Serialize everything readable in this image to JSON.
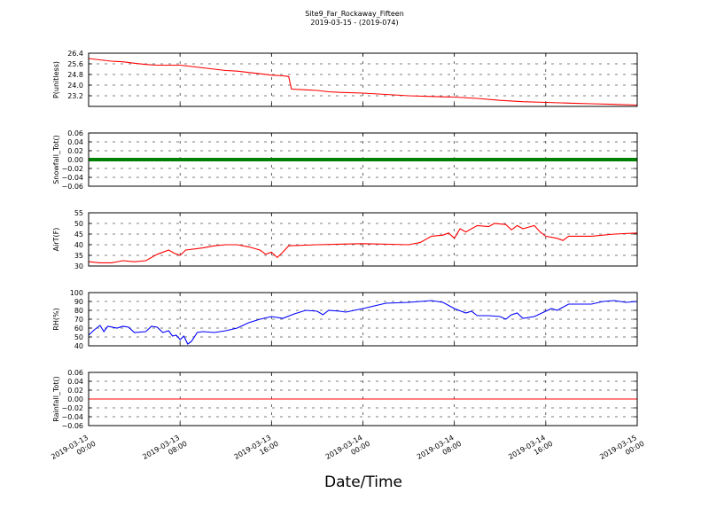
{
  "chart_data": {
    "title": "Site9_Far_Rockaway_Fifteen",
    "subtitle": "2019-03-15 - (2019-074)",
    "xlabel": "Date/Time",
    "type": "line",
    "x_range": [
      "2019-03-13 00:00",
      "2019-03-15 00:00"
    ],
    "x_ticks": [
      "2019-03-13 00:00",
      "2019-03-13 08:00",
      "2019-03-13 16:00",
      "2019-03-14 00:00",
      "2019-03-14 08:00",
      "2019-03-14 16:00",
      "2019-03-15 00:00"
    ],
    "x_tick_labels": [
      [
        "2019-03-13",
        "00:00"
      ],
      [
        "2019-03-13",
        "08:00"
      ],
      [
        "2019-03-13",
        "16:00"
      ],
      [
        "2019-03-14",
        "00:00"
      ],
      [
        "2019-03-14",
        "08:00"
      ],
      [
        "2019-03-14",
        "16:00"
      ],
      [
        "2019-03-15",
        "00:00"
      ]
    ],
    "grid": true,
    "panels": [
      {
        "ylabel": "P(unitless)",
        "ylim": [
          22.4,
          26.4
        ],
        "yticks": [
          23.2,
          24.0,
          24.8,
          25.6,
          26.4
        ],
        "ytick_labels": [
          "23.2",
          "24.0",
          "24.8",
          "25.6",
          "26.4"
        ],
        "color": "#ff0000",
        "series": [
          {
            "x": "2019-03-13 00:00",
            "y": 26.0
          },
          {
            "x": "2019-03-13 01:00",
            "y": 25.9
          },
          {
            "x": "2019-03-13 02:00",
            "y": 25.8
          },
          {
            "x": "2019-03-13 03:00",
            "y": 25.75
          },
          {
            "x": "2019-03-13 04:00",
            "y": 25.65
          },
          {
            "x": "2019-03-13 05:00",
            "y": 25.55
          },
          {
            "x": "2019-03-13 06:00",
            "y": 25.5
          },
          {
            "x": "2019-03-13 07:00",
            "y": 25.5
          },
          {
            "x": "2019-03-13 08:00",
            "y": 25.5
          },
          {
            "x": "2019-03-13 09:00",
            "y": 25.4
          },
          {
            "x": "2019-03-13 10:00",
            "y": 25.3
          },
          {
            "x": "2019-03-13 11:00",
            "y": 25.2
          },
          {
            "x": "2019-03-13 12:00",
            "y": 25.1
          },
          {
            "x": "2019-03-13 13:00",
            "y": 25.05
          },
          {
            "x": "2019-03-13 14:00",
            "y": 24.95
          },
          {
            "x": "2019-03-13 15:00",
            "y": 24.85
          },
          {
            "x": "2019-03-13 16:00",
            "y": 24.75
          },
          {
            "x": "2019-03-13 17:00",
            "y": 24.7
          },
          {
            "x": "2019-03-13 17:30",
            "y": 24.65
          },
          {
            "x": "2019-03-13 17:45",
            "y": 23.7
          },
          {
            "x": "2019-03-13 19:00",
            "y": 23.65
          },
          {
            "x": "2019-03-13 20:00",
            "y": 23.6
          },
          {
            "x": "2019-03-13 21:00",
            "y": 23.5
          },
          {
            "x": "2019-03-13 22:00",
            "y": 23.45
          },
          {
            "x": "2019-03-14 00:00",
            "y": 23.4
          },
          {
            "x": "2019-03-14 02:00",
            "y": 23.3
          },
          {
            "x": "2019-03-14 04:00",
            "y": 23.2
          },
          {
            "x": "2019-03-14 06:00",
            "y": 23.15
          },
          {
            "x": "2019-03-14 08:00",
            "y": 23.1
          },
          {
            "x": "2019-03-14 10:00",
            "y": 23.0
          },
          {
            "x": "2019-03-14 12:00",
            "y": 22.85
          },
          {
            "x": "2019-03-14 14:00",
            "y": 22.75
          },
          {
            "x": "2019-03-14 16:00",
            "y": 22.7
          },
          {
            "x": "2019-03-14 18:00",
            "y": 22.65
          },
          {
            "x": "2019-03-14 20:00",
            "y": 22.6
          },
          {
            "x": "2019-03-14 22:00",
            "y": 22.55
          },
          {
            "x": "2019-03-15 00:00",
            "y": 22.5
          }
        ]
      },
      {
        "ylabel": "Snowfall_Tot()",
        "ylim": [
          -0.06,
          0.06
        ],
        "yticks": [
          -0.06,
          -0.04,
          -0.02,
          0.0,
          0.02,
          0.04,
          0.06
        ],
        "ytick_labels": [
          "−0.06",
          "−0.04",
          "−0.02",
          "0.00",
          "0.02",
          "0.04",
          "0.06"
        ],
        "color": "#008000",
        "series": [
          {
            "x": "2019-03-13 00:00",
            "y": 0.0
          },
          {
            "x": "2019-03-15 00:00",
            "y": 0.0
          }
        ]
      },
      {
        "ylabel": "AirT(F)",
        "ylim": [
          30,
          55
        ],
        "yticks": [
          30,
          35,
          40,
          45,
          50,
          55
        ],
        "ytick_labels": [
          "30",
          "35",
          "40",
          "45",
          "50",
          "55"
        ],
        "color": "#ff0000",
        "series": [
          {
            "x": "2019-03-13 00:00",
            "y": 32.0
          },
          {
            "x": "2019-03-13 01:00",
            "y": 31.5
          },
          {
            "x": "2019-03-13 02:00",
            "y": 31.5
          },
          {
            "x": "2019-03-13 03:00",
            "y": 32.5
          },
          {
            "x": "2019-03-13 04:00",
            "y": 32.0
          },
          {
            "x": "2019-03-13 05:00",
            "y": 32.5
          },
          {
            "x": "2019-03-13 06:00",
            "y": 35.5
          },
          {
            "x": "2019-03-13 07:00",
            "y": 37.5
          },
          {
            "x": "2019-03-13 07:30",
            "y": 36.0
          },
          {
            "x": "2019-03-13 08:00",
            "y": 35.0
          },
          {
            "x": "2019-03-13 08:30",
            "y": 37.5
          },
          {
            "x": "2019-03-13 10:00",
            "y": 38.5
          },
          {
            "x": "2019-03-13 11:00",
            "y": 39.5
          },
          {
            "x": "2019-03-13 12:00",
            "y": 40.0
          },
          {
            "x": "2019-03-13 13:00",
            "y": 40.0
          },
          {
            "x": "2019-03-13 14:00",
            "y": 39.0
          },
          {
            "x": "2019-03-13 15:00",
            "y": 37.5
          },
          {
            "x": "2019-03-13 15:30",
            "y": 35.5
          },
          {
            "x": "2019-03-13 16:00",
            "y": 36.5
          },
          {
            "x": "2019-03-13 16:30",
            "y": 34.0
          },
          {
            "x": "2019-03-13 17:00",
            "y": 36.5
          },
          {
            "x": "2019-03-13 17:30",
            "y": 39.5
          },
          {
            "x": "2019-03-13 20:00",
            "y": 40.0
          },
          {
            "x": "2019-03-14 00:00",
            "y": 40.5
          },
          {
            "x": "2019-03-14 04:00",
            "y": 40.0
          },
          {
            "x": "2019-03-14 05:00",
            "y": 41.0
          },
          {
            "x": "2019-03-14 06:00",
            "y": 44.0
          },
          {
            "x": "2019-03-14 07:00",
            "y": 44.5
          },
          {
            "x": "2019-03-14 07:30",
            "y": 45.5
          },
          {
            "x": "2019-03-14 08:00",
            "y": 43.0
          },
          {
            "x": "2019-03-14 08:30",
            "y": 47.5
          },
          {
            "x": "2019-03-14 09:00",
            "y": 46.0
          },
          {
            "x": "2019-03-14 10:00",
            "y": 49.0
          },
          {
            "x": "2019-03-14 11:00",
            "y": 48.5
          },
          {
            "x": "2019-03-14 11:30",
            "y": 50.0
          },
          {
            "x": "2019-03-14 12:30",
            "y": 49.5
          },
          {
            "x": "2019-03-14 13:00",
            "y": 47.0
          },
          {
            "x": "2019-03-14 13:30",
            "y": 49.0
          },
          {
            "x": "2019-03-14 14:00",
            "y": 47.5
          },
          {
            "x": "2019-03-14 15:00",
            "y": 49.0
          },
          {
            "x": "2019-03-14 15:30",
            "y": 46.0
          },
          {
            "x": "2019-03-14 16:00",
            "y": 44.0
          },
          {
            "x": "2019-03-14 17:00",
            "y": 43.0
          },
          {
            "x": "2019-03-14 17:30",
            "y": 42.0
          },
          {
            "x": "2019-03-14 18:00",
            "y": 44.0
          },
          {
            "x": "2019-03-14 20:00",
            "y": 44.0
          },
          {
            "x": "2019-03-14 22:00",
            "y": 45.0
          },
          {
            "x": "2019-03-15 00:00",
            "y": 45.5
          }
        ]
      },
      {
        "ylabel": "RH(%)",
        "ylim": [
          40,
          100
        ],
        "yticks": [
          40,
          50,
          60,
          70,
          80,
          90,
          100
        ],
        "ytick_labels": [
          "40",
          "50",
          "60",
          "70",
          "80",
          "90",
          "100"
        ],
        "color": "#0000ff",
        "series": [
          {
            "x": "2019-03-13 00:00",
            "y": 52
          },
          {
            "x": "2019-03-13 00:30",
            "y": 58
          },
          {
            "x": "2019-03-13 01:00",
            "y": 63
          },
          {
            "x": "2019-03-13 01:20",
            "y": 56
          },
          {
            "x": "2019-03-13 01:40",
            "y": 62
          },
          {
            "x": "2019-03-13 02:30",
            "y": 60
          },
          {
            "x": "2019-03-13 03:00",
            "y": 62
          },
          {
            "x": "2019-03-13 03:30",
            "y": 61
          },
          {
            "x": "2019-03-13 04:00",
            "y": 55
          },
          {
            "x": "2019-03-13 05:00",
            "y": 56
          },
          {
            "x": "2019-03-13 05:30",
            "y": 62
          },
          {
            "x": "2019-03-13 06:00",
            "y": 61
          },
          {
            "x": "2019-03-13 06:30",
            "y": 55
          },
          {
            "x": "2019-03-13 07:00",
            "y": 57
          },
          {
            "x": "2019-03-13 07:20",
            "y": 51
          },
          {
            "x": "2019-03-13 07:40",
            "y": 52
          },
          {
            "x": "2019-03-13 08:00",
            "y": 47
          },
          {
            "x": "2019-03-13 08:20",
            "y": 51
          },
          {
            "x": "2019-03-13 08:40",
            "y": 42
          },
          {
            "x": "2019-03-13 09:00",
            "y": 45
          },
          {
            "x": "2019-03-13 09:30",
            "y": 55
          },
          {
            "x": "2019-03-13 10:00",
            "y": 56
          },
          {
            "x": "2019-03-13 11:00",
            "y": 55
          },
          {
            "x": "2019-03-13 12:00",
            "y": 57
          },
          {
            "x": "2019-03-13 13:00",
            "y": 60
          },
          {
            "x": "2019-03-13 14:00",
            "y": 66
          },
          {
            "x": "2019-03-13 15:00",
            "y": 70
          },
          {
            "x": "2019-03-13 16:00",
            "y": 73
          },
          {
            "x": "2019-03-13 17:00",
            "y": 71
          },
          {
            "x": "2019-03-13 18:00",
            "y": 76
          },
          {
            "x": "2019-03-13 19:00",
            "y": 80
          },
          {
            "x": "2019-03-13 20:00",
            "y": 79
          },
          {
            "x": "2019-03-13 20:30",
            "y": 75
          },
          {
            "x": "2019-03-13 21:00",
            "y": 80
          },
          {
            "x": "2019-03-13 22:00",
            "y": 79
          },
          {
            "x": "2019-03-13 22:30",
            "y": 78
          },
          {
            "x": "2019-03-14 00:00",
            "y": 82
          },
          {
            "x": "2019-03-14 01:00",
            "y": 85
          },
          {
            "x": "2019-03-14 02:00",
            "y": 88
          },
          {
            "x": "2019-03-14 04:00",
            "y": 89
          },
          {
            "x": "2019-03-14 06:00",
            "y": 91
          },
          {
            "x": "2019-03-14 07:00",
            "y": 89
          },
          {
            "x": "2019-03-14 08:00",
            "y": 82
          },
          {
            "x": "2019-03-14 09:00",
            "y": 77
          },
          {
            "x": "2019-03-14 09:30",
            "y": 79
          },
          {
            "x": "2019-03-14 10:00",
            "y": 74
          },
          {
            "x": "2019-03-14 11:00",
            "y": 74
          },
          {
            "x": "2019-03-14 12:00",
            "y": 73
          },
          {
            "x": "2019-03-14 12:30",
            "y": 70
          },
          {
            "x": "2019-03-14 13:00",
            "y": 75
          },
          {
            "x": "2019-03-14 13:30",
            "y": 77
          },
          {
            "x": "2019-03-14 14:00",
            "y": 71
          },
          {
            "x": "2019-03-14 15:00",
            "y": 73
          },
          {
            "x": "2019-03-14 16:00",
            "y": 79
          },
          {
            "x": "2019-03-14 16:30",
            "y": 82
          },
          {
            "x": "2019-03-14 17:00",
            "y": 80
          },
          {
            "x": "2019-03-14 18:00",
            "y": 87
          },
          {
            "x": "2019-03-14 20:00",
            "y": 87
          },
          {
            "x": "2019-03-14 21:00",
            "y": 90
          },
          {
            "x": "2019-03-14 22:00",
            "y": 91
          },
          {
            "x": "2019-03-14 23:00",
            "y": 89
          },
          {
            "x": "2019-03-15 00:00",
            "y": 90
          }
        ]
      },
      {
        "ylabel": "Rainfall_Tot()",
        "ylim": [
          -0.06,
          0.06
        ],
        "yticks": [
          -0.06,
          -0.04,
          -0.02,
          0.0,
          0.02,
          0.04,
          0.06
        ],
        "ytick_labels": [
          "−0.06",
          "−0.04",
          "−0.02",
          "0.00",
          "0.02",
          "0.04",
          "0.06"
        ],
        "color": "#ff0000",
        "series": [
          {
            "x": "2019-03-13 00:00",
            "y": 0.0
          },
          {
            "x": "2019-03-15 00:00",
            "y": 0.0
          }
        ]
      }
    ]
  }
}
